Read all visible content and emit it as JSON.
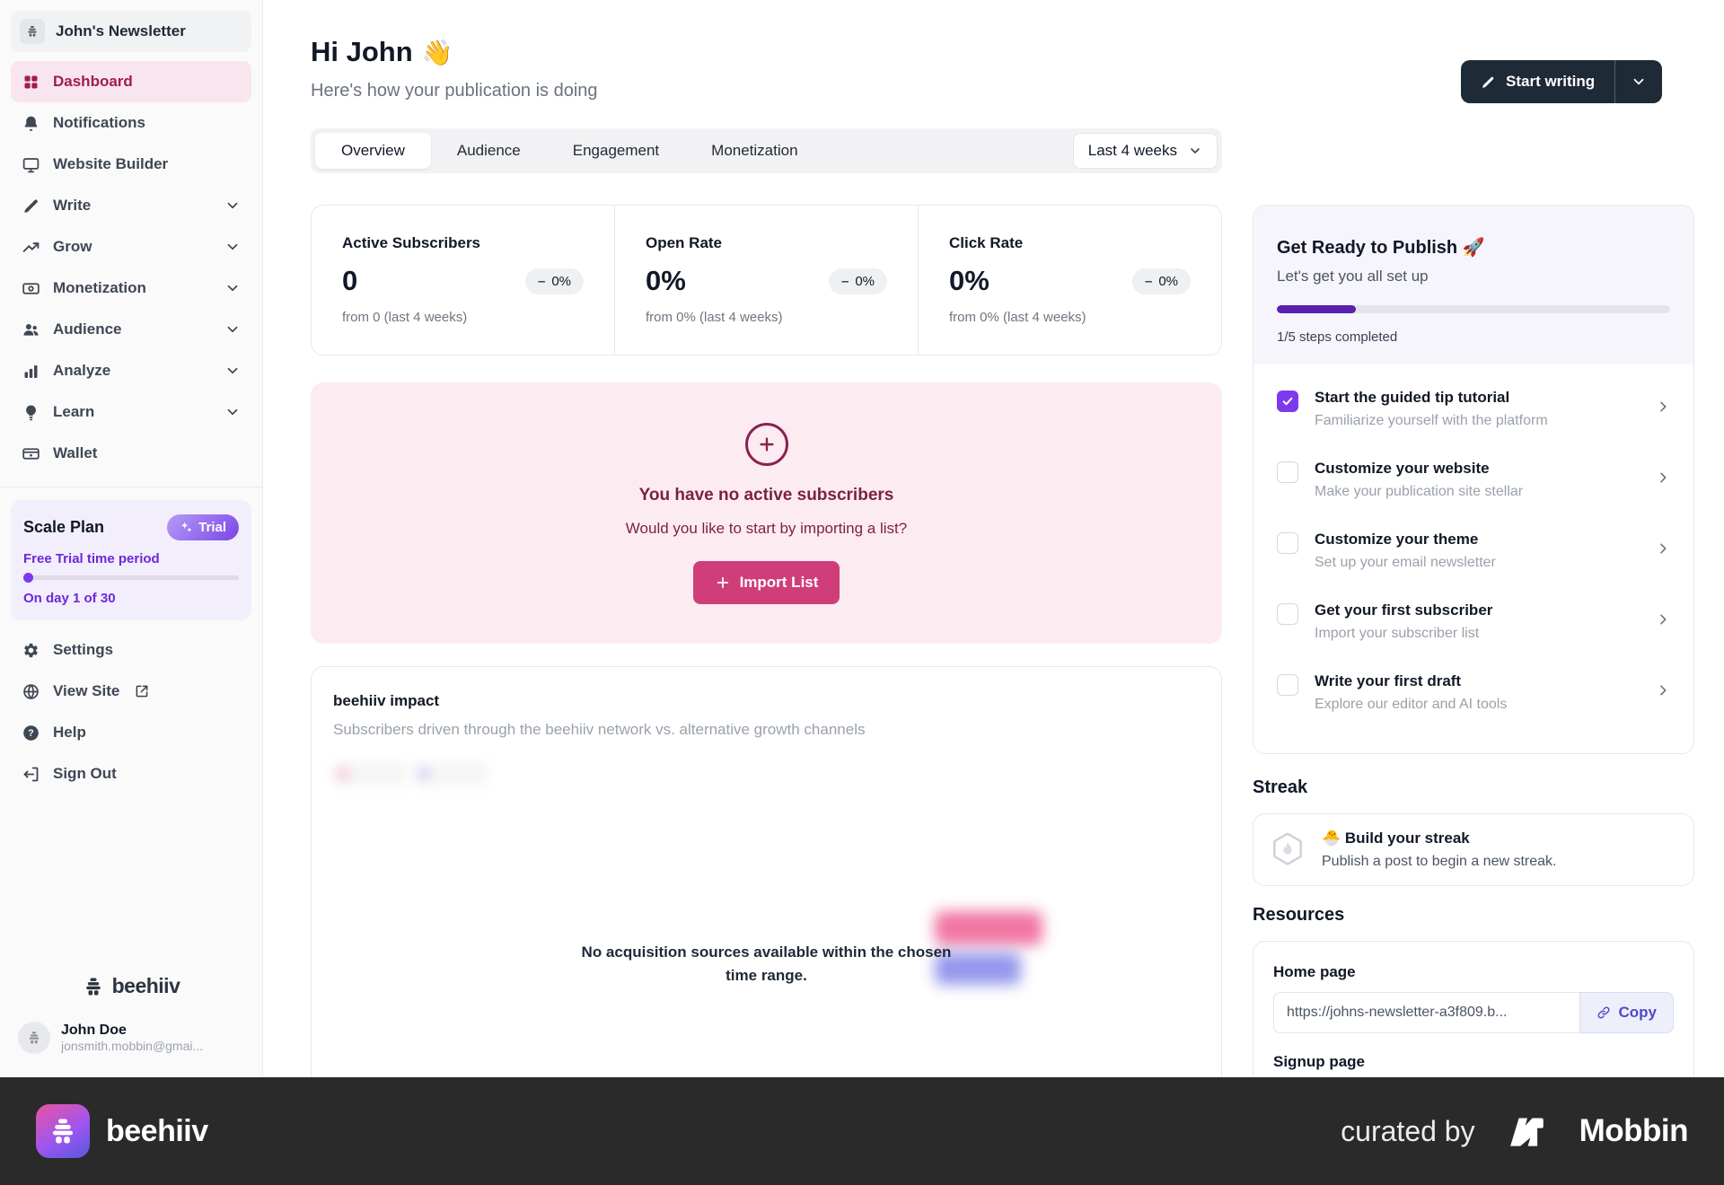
{
  "sidebar": {
    "workspace": {
      "name": "John's Newsletter"
    },
    "nav": [
      {
        "label": "Dashboard",
        "icon": "grid-icon",
        "active": true
      },
      {
        "label": "Notifications",
        "icon": "bell-icon"
      },
      {
        "label": "Website Builder",
        "icon": "monitor-icon"
      },
      {
        "label": "Write",
        "icon": "pencil-icon",
        "expandable": true
      },
      {
        "label": "Grow",
        "icon": "trending-up-icon",
        "expandable": true
      },
      {
        "label": "Monetization",
        "icon": "banknote-icon",
        "expandable": true
      },
      {
        "label": "Audience",
        "icon": "people-icon",
        "expandable": true
      },
      {
        "label": "Analyze",
        "icon": "bar-chart-icon",
        "expandable": true
      },
      {
        "label": "Learn",
        "icon": "lightbulb-icon",
        "expandable": true
      },
      {
        "label": "Wallet",
        "icon": "wallet-icon"
      }
    ],
    "plan_card": {
      "title": "Scale Plan",
      "badge": "Trial",
      "subtitle": "Free Trial time period",
      "progress_pct": 3,
      "day_text": "On day 1 of 30"
    },
    "footer_nav": [
      {
        "label": "Settings",
        "icon": "gear-icon"
      },
      {
        "label": "View Site",
        "icon": "globe-icon",
        "external": true
      },
      {
        "label": "Help",
        "icon": "help-circle-icon"
      },
      {
        "label": "Sign Out",
        "icon": "sign-out-icon"
      }
    ],
    "brand": "beehiiv",
    "user": {
      "name": "John Doe",
      "email": "jonsmith.mobbin@gmai..."
    }
  },
  "header": {
    "title": "Hi John",
    "wave_emoji": "👋",
    "subtitle": "Here's how your publication is doing",
    "start_writing_label": "Start writing"
  },
  "tabs": {
    "items": [
      {
        "label": "Overview",
        "active": true
      },
      {
        "label": "Audience"
      },
      {
        "label": "Engagement"
      },
      {
        "label": "Monetization"
      }
    ],
    "range_selector": "Last 4 weeks"
  },
  "stats": [
    {
      "label": "Active Subscribers",
      "value": "0",
      "delta": "0%",
      "caption": "from 0 (last 4 weeks)"
    },
    {
      "label": "Open Rate",
      "value": "0%",
      "delta": "0%",
      "caption": "from 0% (last 4 weeks)"
    },
    {
      "label": "Click Rate",
      "value": "0%",
      "delta": "0%",
      "caption": "from 0% (last 4 weeks)"
    }
  ],
  "empty_state": {
    "title": "You have no active subscribers",
    "subtitle": "Would you like to start by importing a list?",
    "button_label": "Import List"
  },
  "impact": {
    "title": "beehiiv impact",
    "subtitle": "Subscribers driven through the beehiiv network vs. alternative growth channels",
    "empty_line1": "No acquisition sources available within the chosen",
    "empty_line2": "time range."
  },
  "checklist": {
    "title": "Get Ready to Publish",
    "rocket_emoji": "🚀",
    "subtitle": "Let's get you all set up",
    "progress_pct": 20,
    "progress_text": "1/5 steps completed",
    "items": [
      {
        "title": "Start the guided tip tutorial",
        "subtitle": "Familiarize yourself with the platform",
        "checked": true
      },
      {
        "title": "Customize your website",
        "subtitle": "Make your publication site stellar",
        "checked": false
      },
      {
        "title": "Customize your theme",
        "subtitle": "Set up your email newsletter",
        "checked": false
      },
      {
        "title": "Get your first subscriber",
        "subtitle": "Import your subscriber list",
        "checked": false
      },
      {
        "title": "Write your first draft",
        "subtitle": "Explore our editor and AI tools",
        "checked": false
      }
    ]
  },
  "streak": {
    "heading": "Streak",
    "title": "🐣 Build your streak",
    "subtitle": "Publish a post to begin a new streak."
  },
  "resources": {
    "heading": "Resources",
    "home_page_label": "Home page",
    "home_page_url": "https://johns-newsletter-a3f809.b...",
    "copy_label": "Copy",
    "signup_page_label": "Signup page"
  },
  "footer_bar": {
    "brand": "beehiiv",
    "curated_by": "curated by",
    "curator": "Mobbin"
  },
  "colors": {
    "accent_maroon": "#a01d4f",
    "pink_button": "#cf3e79",
    "purple_accent": "#7c3aed",
    "progress_purple": "#5a21af",
    "dark_button": "#1f2a37",
    "footer_bg": "#2b2a2a"
  }
}
